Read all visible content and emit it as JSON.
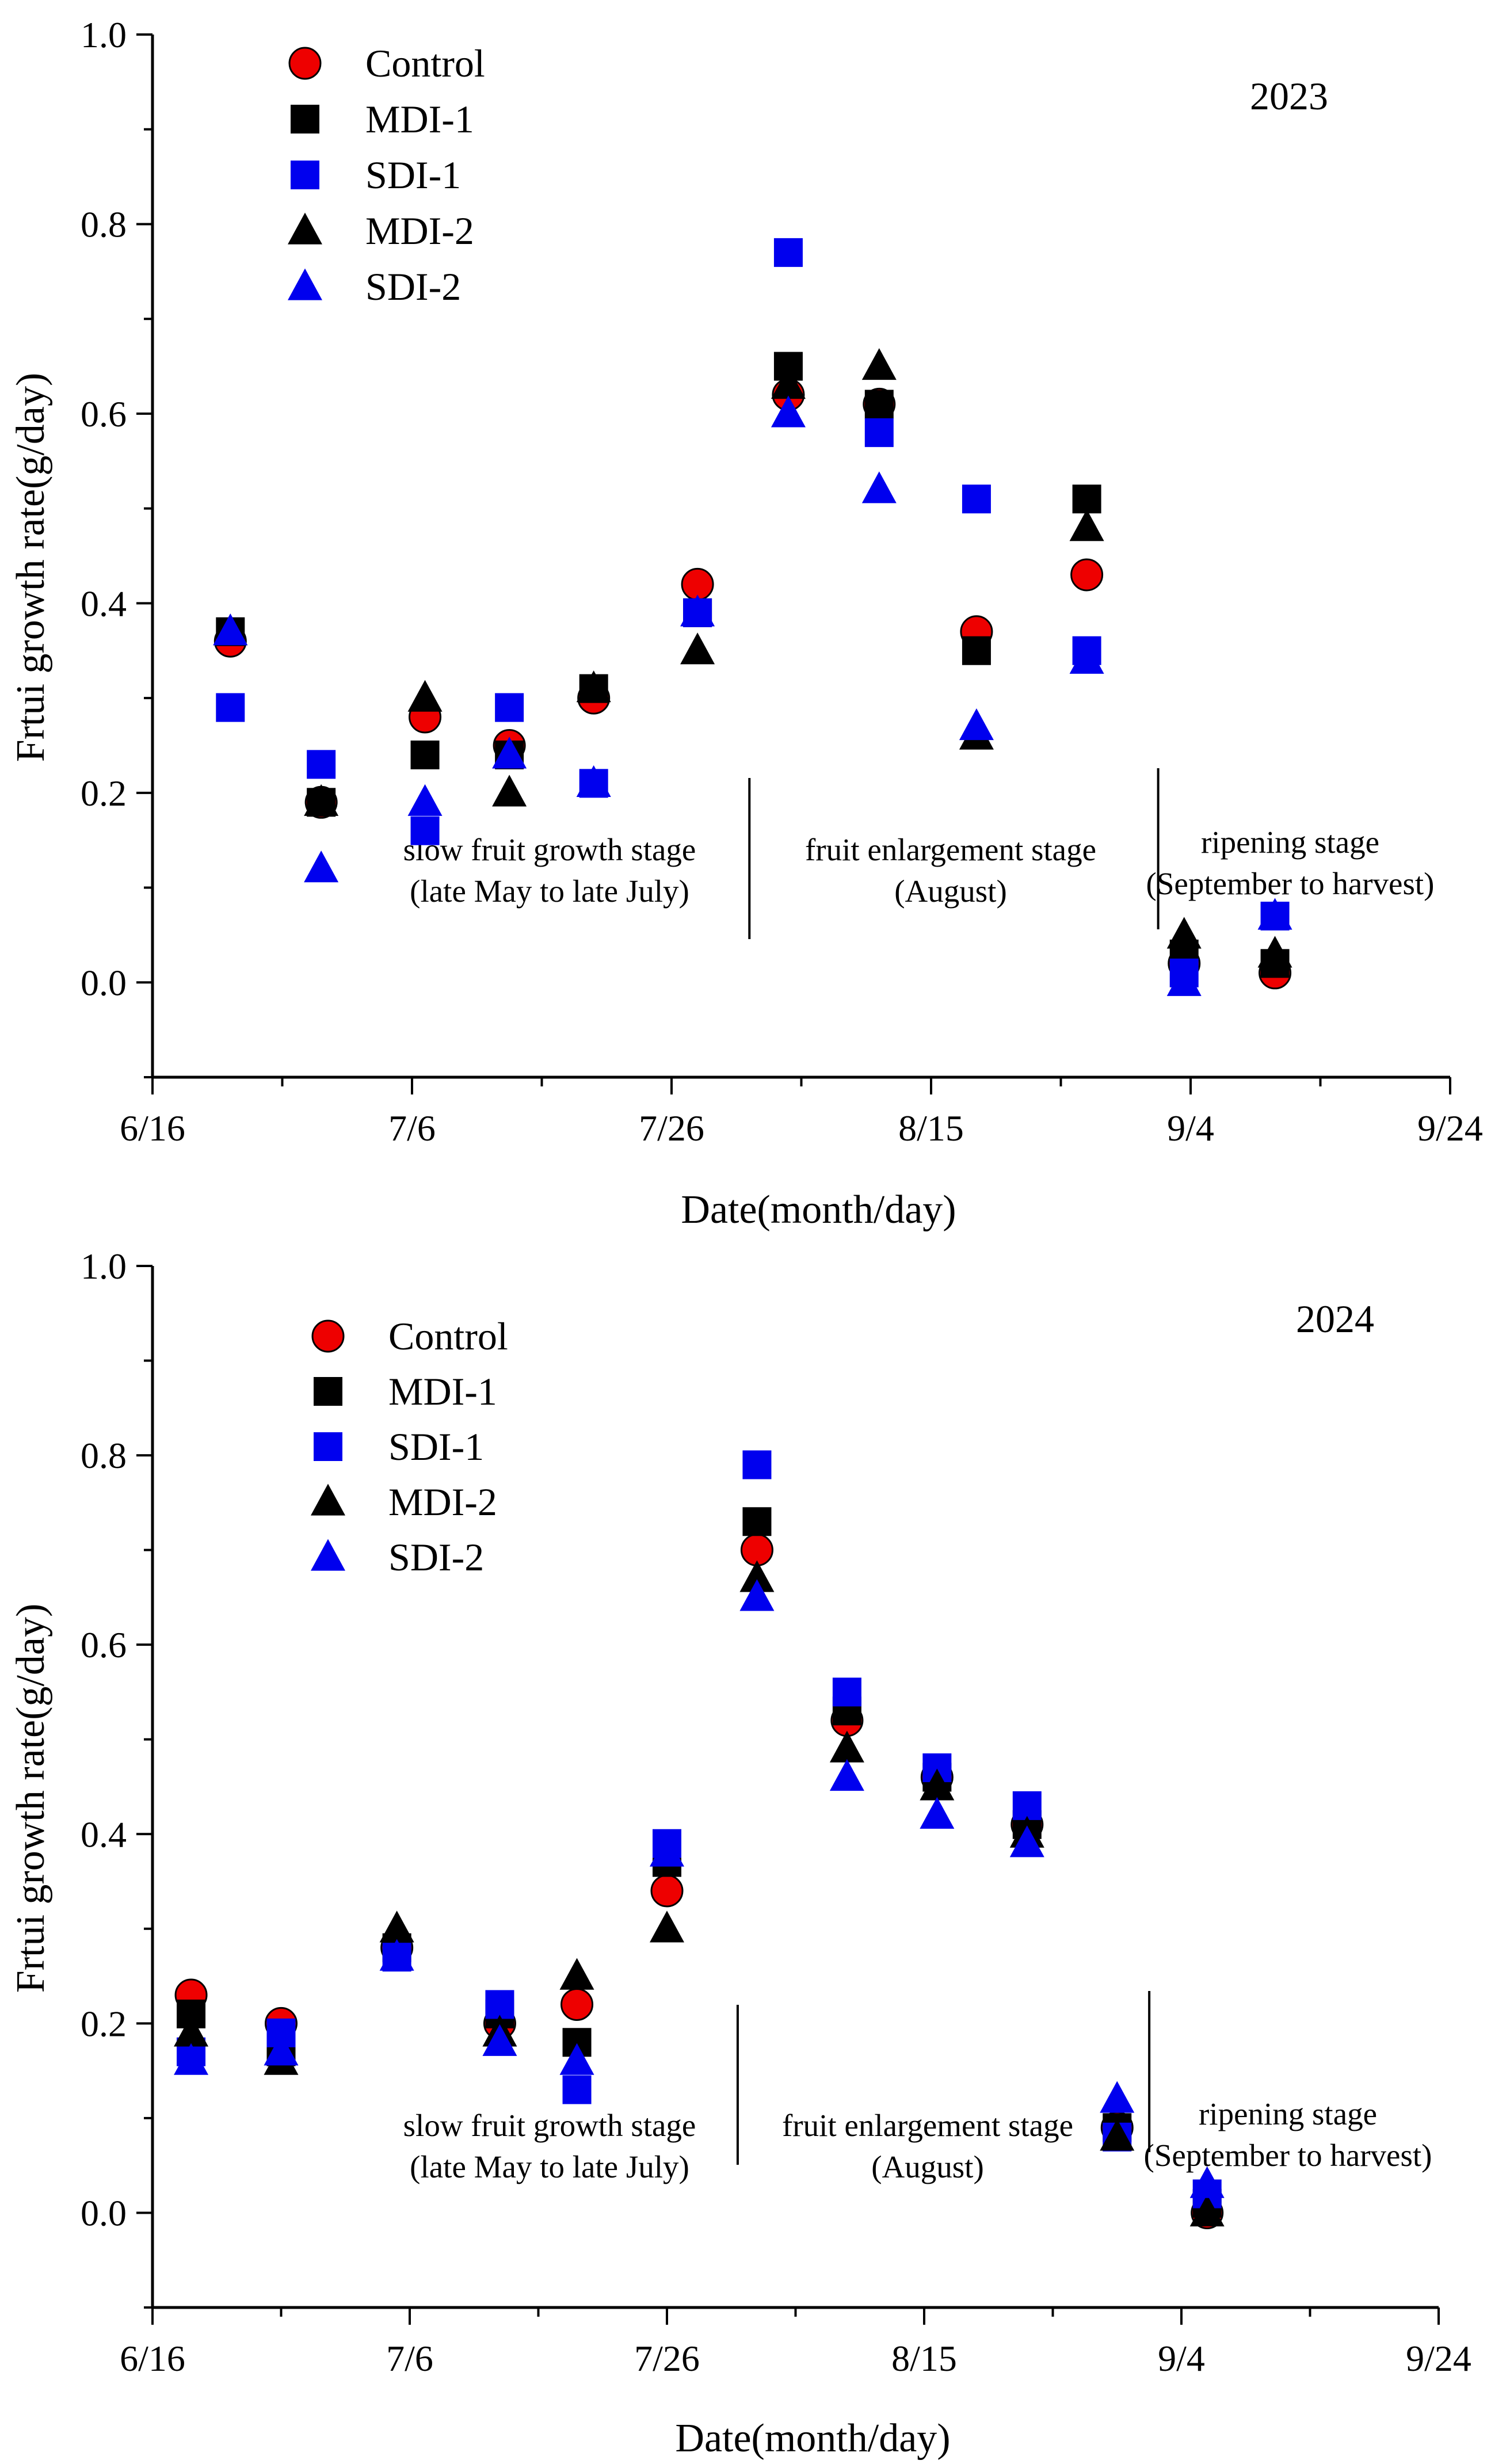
{
  "chart_data": [
    {
      "type": "scatter",
      "title": "2023",
      "xlabel": "Date(month/day)",
      "ylabel": "Frtui growth rate(g/day)",
      "x_unit": "days since 6/16",
      "xlim": [
        0,
        100
      ],
      "ylim": [
        -0.1,
        1.0
      ],
      "xticks": [
        0,
        20,
        40,
        60,
        80,
        100
      ],
      "xtick_labels": [
        "6/16",
        "7/6",
        "7/26",
        "8/15",
        "9/4",
        "9/24"
      ],
      "yticks": [
        0.0,
        0.2,
        0.4,
        0.6,
        0.8,
        1.0
      ],
      "ytick_labels": [
        "0.0",
        "0.2",
        "0.4",
        "0.6",
        "0.8",
        "1.0"
      ],
      "legend_position": "top-left",
      "series": [
        {
          "name": "Control",
          "marker": "circle",
          "color": "#ee0000",
          "x": [
            6,
            13,
            21,
            27.5,
            34,
            42,
            49,
            56,
            63.5,
            72,
            79.5,
            86.5
          ],
          "y": [
            0.36,
            0.19,
            0.28,
            0.25,
            0.3,
            0.42,
            0.62,
            0.61,
            0.37,
            0.43,
            0.02,
            0.01
          ]
        },
        {
          "name": "MDI-1",
          "marker": "square",
          "color": "#000000",
          "x": [
            6,
            13,
            21,
            27.5,
            34,
            42,
            49,
            56,
            63.5,
            72,
            79.5,
            86.5
          ],
          "y": [
            0.37,
            0.19,
            0.24,
            0.24,
            0.31,
            0.39,
            0.65,
            0.61,
            0.35,
            0.51,
            0.03,
            0.02
          ]
        },
        {
          "name": "SDI-1",
          "marker": "square",
          "color": "#0000ee",
          "x": [
            6,
            13,
            21,
            27.5,
            34,
            42,
            49,
            56,
            63.5,
            72,
            79.5,
            86.5
          ],
          "y": [
            0.29,
            0.23,
            0.16,
            0.29,
            0.21,
            0.39,
            0.77,
            0.58,
            0.51,
            0.35,
            0.01,
            0.07
          ]
        },
        {
          "name": "MDI-2",
          "marker": "triangle",
          "color": "#000000",
          "x": [
            6,
            13,
            21,
            27.5,
            34,
            42,
            49,
            56,
            63.5,
            72,
            79.5,
            86.5
          ],
          "y": [
            0.37,
            0.19,
            0.3,
            0.2,
            0.31,
            0.35,
            0.63,
            0.65,
            0.26,
            0.48,
            0.05,
            0.03
          ]
        },
        {
          "name": "SDI-2",
          "marker": "triangle",
          "color": "#0000ee",
          "x": [
            6,
            13,
            21,
            27.5,
            34,
            42,
            49,
            56,
            63.5,
            72,
            79.5,
            86.5
          ],
          "y": [
            0.37,
            0.12,
            0.19,
            0.24,
            0.21,
            0.39,
            0.6,
            0.52,
            0.27,
            0.34,
            0.0,
            0.07
          ]
        }
      ],
      "annotations": [
        {
          "text": "slow fruit growth stage",
          "text2": "(late May to late July)"
        },
        {
          "text": "fruit enlargement stage",
          "text2": "(August)"
        },
        {
          "text": "ripening stage",
          "text2": "(September to harvest)"
        }
      ],
      "dividers_x": [
        46,
        77.5
      ]
    },
    {
      "type": "scatter",
      "title": "2024",
      "xlabel": "Date(month/day)",
      "ylabel": "Frtui growth rate(g/day)",
      "x_unit": "days since 6/16",
      "xlim": [
        0,
        100
      ],
      "ylim": [
        -0.1,
        1.0
      ],
      "xticks": [
        0,
        20,
        40,
        60,
        80,
        100
      ],
      "xtick_labels": [
        "6/16",
        "7/6",
        "7/26",
        "8/15",
        "9/4",
        "9/24"
      ],
      "yticks": [
        0.0,
        0.2,
        0.4,
        0.6,
        0.8,
        1.0
      ],
      "ytick_labels": [
        "0.0",
        "0.2",
        "0.4",
        "0.6",
        "0.8",
        "1.0"
      ],
      "legend_position": "top-left",
      "series": [
        {
          "name": "Control",
          "marker": "circle",
          "color": "#ee0000",
          "x": [
            3,
            10,
            19,
            27,
            33,
            40,
            47,
            54,
            61,
            68,
            75,
            82
          ],
          "y": [
            0.23,
            0.2,
            0.28,
            0.2,
            0.22,
            0.34,
            0.7,
            0.52,
            0.46,
            0.41,
            0.09,
            0.0
          ]
        },
        {
          "name": "MDI-1",
          "marker": "square",
          "color": "#000000",
          "x": [
            3,
            10,
            19,
            27,
            33,
            40,
            47,
            54,
            61,
            68,
            75,
            82
          ],
          "y": [
            0.21,
            0.17,
            0.28,
            0.21,
            0.18,
            0.37,
            0.73,
            0.53,
            0.46,
            0.41,
            0.09,
            0.01
          ]
        },
        {
          "name": "SDI-1",
          "marker": "square",
          "color": "#0000ee",
          "x": [
            3,
            10,
            19,
            27,
            33,
            40,
            47,
            54,
            61,
            68,
            75,
            82
          ],
          "y": [
            0.17,
            0.19,
            0.27,
            0.22,
            0.13,
            0.39,
            0.79,
            0.55,
            0.47,
            0.43,
            0.08,
            0.02
          ]
        },
        {
          "name": "MDI-2",
          "marker": "triangle",
          "color": "#000000",
          "x": [
            3,
            10,
            19,
            27,
            33,
            40,
            47,
            54,
            61,
            68,
            75,
            82
          ],
          "y": [
            0.19,
            0.16,
            0.3,
            0.19,
            0.25,
            0.3,
            0.67,
            0.49,
            0.45,
            0.4,
            0.08,
            0.0
          ]
        },
        {
          "name": "SDI-2",
          "marker": "triangle",
          "color": "#0000ee",
          "x": [
            3,
            10,
            19,
            27,
            33,
            40,
            47,
            54,
            61,
            68,
            75,
            82
          ],
          "y": [
            0.16,
            0.17,
            0.27,
            0.18,
            0.16,
            0.38,
            0.65,
            0.46,
            0.42,
            0.39,
            0.12,
            0.03
          ]
        }
      ],
      "annotations": [
        {
          "text": "slow fruit growth stage",
          "text2": "(late May to late July)"
        },
        {
          "text": "fruit enlargement stage",
          "text2": "(August)"
        },
        {
          "text": "ripening stage",
          "text2": "(September to harvest)"
        }
      ],
      "dividers_x": [
        45.5,
        77.5
      ]
    }
  ]
}
